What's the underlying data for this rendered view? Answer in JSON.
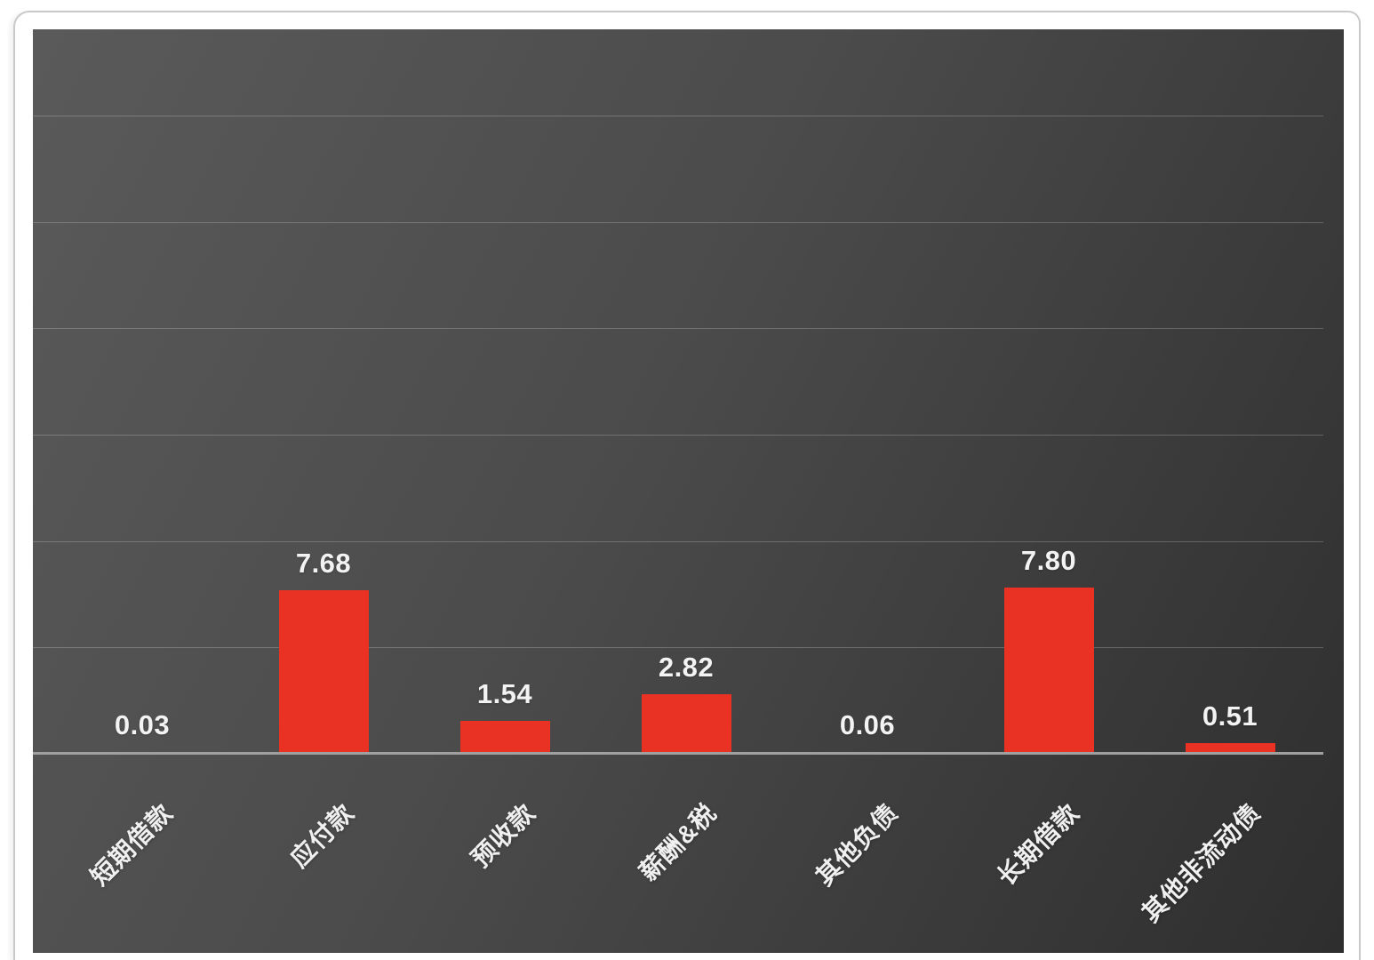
{
  "chart_data": {
    "type": "bar",
    "title": "",
    "xlabel": "",
    "ylabel": "",
    "categories": [
      "短期借款",
      "应付款",
      "预收款",
      "薪酬&税",
      "其他负债",
      "长期借款",
      "其他非流动债"
    ],
    "values": [
      0.03,
      7.68,
      1.54,
      2.82,
      0.06,
      7.8,
      0.51
    ],
    "value_labels": [
      "0.03",
      "7.68",
      "1.54",
      "2.82",
      "0.06",
      "7.80",
      "0.51"
    ],
    "ylim": [
      0,
      30
    ],
    "y_gridline_interval": 5,
    "grid": true,
    "legend": false,
    "category_label_rotation_deg": 45,
    "bar_color": "#e93223",
    "value_label_color": "#f3f3f3",
    "category_label_color": "#f0f0f0",
    "gridline_color": "rgba(255,255,255,0.22)",
    "axis_line_color": "#a0a0a0",
    "panel_gradient": [
      "#5a5a5a",
      "#4b4b4b",
      "#2e2e2e"
    ],
    "page_background": "#ffffff"
  }
}
